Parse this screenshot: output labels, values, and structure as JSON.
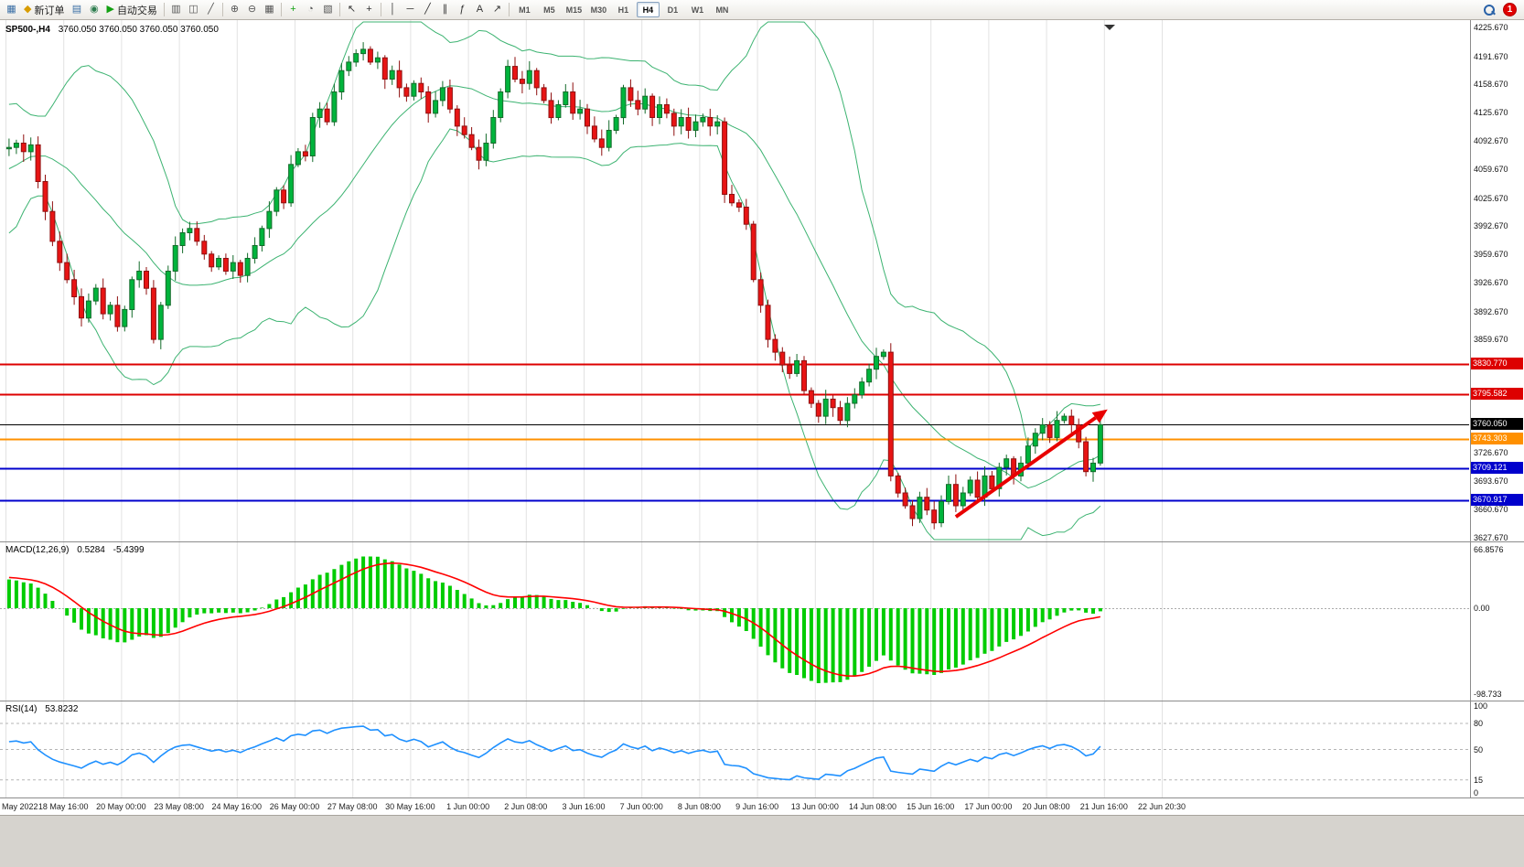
{
  "window": {
    "notification_count": "1"
  },
  "toolbar": {
    "items": [
      {
        "type": "icon",
        "name": "chart-window-icon",
        "glyph": "▦",
        "color": "#3a6ea5"
      },
      {
        "type": "button",
        "name": "new-order-button",
        "label": "新订单",
        "glyph": "◆",
        "color": "#d89c00"
      },
      {
        "type": "icon",
        "name": "market-watch-icon",
        "glyph": "▤",
        "color": "#3a6ea5"
      },
      {
        "type": "icon",
        "name": "navigator-icon",
        "glyph": "◉",
        "color": "#2e7d4f"
      },
      {
        "type": "button",
        "name": "autotrading-button",
        "label": "自动交易",
        "glyph": "▶",
        "color": "#12a012"
      },
      {
        "type": "sep"
      },
      {
        "type": "icon",
        "name": "bar-chart-icon",
        "glyph": "▥",
        "color": "#555555"
      },
      {
        "type": "icon",
        "name": "candlestick-chart-icon",
        "glyph": "◫",
        "color": "#555555"
      },
      {
        "type": "icon",
        "name": "line-chart-icon",
        "glyph": "╱",
        "color": "#555555"
      },
      {
        "type": "sep"
      },
      {
        "type": "icon",
        "name": "zoom-in-icon",
        "glyph": "⊕",
        "color": "#555555"
      },
      {
        "type": "icon",
        "name": "zoom-out-icon",
        "glyph": "⊖",
        "color": "#555555"
      },
      {
        "type": "icon",
        "name": "tile-windows-icon",
        "glyph": "▦",
        "color": "#555555"
      },
      {
        "type": "sep"
      },
      {
        "type": "icon",
        "name": "indicators-icon",
        "glyph": "+",
        "color": "#12a012"
      },
      {
        "type": "icon",
        "name": "periods-icon",
        "glyph": "◔",
        "color": "#555555"
      },
      {
        "type": "icon",
        "name": "templates-icon",
        "glyph": "▧",
        "color": "#555555"
      },
      {
        "type": "sep"
      },
      {
        "type": "icon",
        "name": "cursor-icon",
        "glyph": "↖",
        "color": "#333333"
      },
      {
        "type": "icon",
        "name": "crosshair-icon",
        "glyph": "+",
        "color": "#333333"
      },
      {
        "type": "sep"
      },
      {
        "type": "icon",
        "name": "vertical-line-icon",
        "glyph": "│",
        "color": "#333333"
      },
      {
        "type": "icon",
        "name": "horizontal-line-icon",
        "glyph": "─",
        "color": "#333333"
      },
      {
        "type": "icon",
        "name": "trendline-icon",
        "glyph": "╱",
        "color": "#333333"
      },
      {
        "type": "icon",
        "name": "channel-icon",
        "glyph": "∥",
        "color": "#333333"
      },
      {
        "type": "icon",
        "name": "fibonacci-icon",
        "glyph": "ƒ",
        "color": "#333333"
      },
      {
        "type": "icon",
        "name": "text-icon",
        "glyph": "A",
        "color": "#333333"
      },
      {
        "type": "icon",
        "name": "arrows-icon",
        "glyph": "↗",
        "color": "#333333"
      },
      {
        "type": "sep"
      }
    ],
    "timeframes": [
      "M1",
      "M5",
      "M15",
      "M30",
      "H1",
      "H4",
      "D1",
      "W1",
      "MN"
    ],
    "active_timeframe": "H4"
  },
  "chart": {
    "symbol_label": "SP500-,H4",
    "ohlc_label": "3760.050 3760.050 3760.050 3760.050",
    "price_axis_ticks": [
      "4225.670",
      "4191.670",
      "4158.670",
      "4125.670",
      "4092.670",
      "4059.670",
      "4025.670",
      "3992.670",
      "3959.670",
      "3926.670",
      "3892.670",
      "3859.670",
      "3726.670",
      "3693.670",
      "3660.670",
      "3627.670"
    ],
    "hlines": [
      {
        "price": 3830.77,
        "label": "3830.770",
        "color": "#dd0000",
        "width": 2
      },
      {
        "price": 3795.582,
        "label": "3795.582",
        "color": "#dd0000",
        "width": 2
      },
      {
        "price": 3760.05,
        "label": "3760.050",
        "color": "#000000",
        "width": 1
      },
      {
        "price": 3743.303,
        "label": "3743.303",
        "color": "#ff9000",
        "width": 2
      },
      {
        "price": 3709.121,
        "label": "3709.121",
        "color": "#0000cc",
        "width": 2
      },
      {
        "price": 3670.917,
        "label": "3670.917",
        "color": "#0000cc",
        "width": 2
      }
    ],
    "trend_arrow": {
      "from_slot": 131,
      "from_price": 3652,
      "to_slot": 152,
      "to_price": 3778,
      "color": "#e80000"
    }
  },
  "macd": {
    "title": "MACD(12,26,9)",
    "value_main": "0.5284",
    "value_signal": "-5.4399",
    "axis_labels": [
      "66.8576",
      "0.00",
      "-98.733"
    ]
  },
  "rsi": {
    "title": "RSI(14)",
    "value": "53.8232",
    "axis_labels": [
      "100",
      "80",
      "50",
      "15",
      "0"
    ],
    "levels": [
      80,
      50,
      15
    ]
  },
  "chart_data": {
    "type": "candlestick",
    "symbol": "SP500-",
    "timeframe": "H4",
    "title": "SP500-,H4",
    "price_axis_range": [
      3623.2,
      4234.2
    ],
    "bars_per_gridline": 8,
    "time_labels": [
      "May 2022",
      "18 May 16:00",
      "20 May 00:00",
      "23 May 08:00",
      "24 May 16:00",
      "26 May 00:00",
      "27 May 08:00",
      "30 May 16:00",
      "1 Jun 00:00",
      "2 Jun 08:00",
      "3 Jun 16:00",
      "7 Jun 00:00",
      "8 Jun 08:00",
      "9 Jun 16:00",
      "13 Jun 00:00",
      "14 Jun 08:00",
      "15 Jun 16:00",
      "17 Jun 00:00",
      "20 Jun 08:00",
      "21 Jun 16:00",
      "22 Jun 20:30"
    ],
    "history_closes": [
      3935,
      3900,
      3930,
      3960,
      3920,
      3890,
      3860,
      3910,
      3930,
      3950,
      3985,
      4005,
      3975,
      3995,
      4030,
      4010,
      4045,
      4060,
      4040,
      4075,
      4100,
      4085,
      4110,
      4090,
      4070,
      4095,
      4080,
      4075,
      4090,
      4085
    ],
    "closes": [
      4085,
      4090,
      4080,
      4088,
      4045,
      4010,
      3975,
      3950,
      3930,
      3910,
      3885,
      3905,
      3920,
      3890,
      3900,
      3875,
      3895,
      3930,
      3940,
      3920,
      3860,
      3900,
      3940,
      3970,
      3985,
      3990,
      3975,
      3960,
      3945,
      3955,
      3940,
      3950,
      3935,
      3955,
      3970,
      3990,
      4010,
      4035,
      4020,
      4065,
      4080,
      4075,
      4120,
      4130,
      4115,
      4150,
      4175,
      4185,
      4195,
      4200,
      4185,
      4190,
      4165,
      4175,
      4155,
      4145,
      4160,
      4150,
      4125,
      4140,
      4155,
      4130,
      4110,
      4100,
      4085,
      4070,
      4090,
      4120,
      4150,
      4180,
      4165,
      4160,
      4175,
      4155,
      4140,
      4120,
      4135,
      4150,
      4125,
      4130,
      4110,
      4095,
      4085,
      4105,
      4120,
      4155,
      4140,
      4130,
      4145,
      4120,
      4135,
      4125,
      4110,
      4120,
      4105,
      4115,
      4120,
      4110,
      4115,
      4030,
      4020,
      4015,
      3995,
      3930,
      3900,
      3860,
      3845,
      3830,
      3820,
      3835,
      3800,
      3785,
      3770,
      3790,
      3780,
      3765,
      3785,
      3795,
      3810,
      3825,
      3840,
      3845,
      3700,
      3680,
      3665,
      3650,
      3675,
      3660,
      3645,
      3670,
      3690,
      3665,
      3680,
      3695,
      3675,
      3700,
      3685,
      3710,
      3720,
      3700,
      3715,
      3735,
      3750,
      3760,
      3745,
      3765,
      3770,
      3760,
      3740,
      3705,
      3715,
      3760.05
    ],
    "indicators": {
      "bollinger": {
        "period": 20,
        "deviation": 2
      },
      "macd": {
        "fast": 12,
        "slow": 26,
        "signal": 9,
        "scale_max": 66.8576,
        "scale_min": -98.733
      },
      "rsi": {
        "period": 14
      }
    }
  }
}
